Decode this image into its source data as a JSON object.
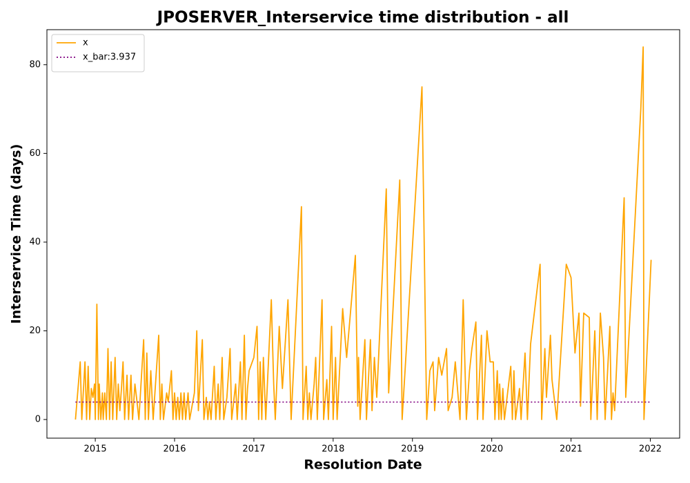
{
  "chart_data": {
    "type": "line",
    "title": "JPOSERVER_Interservice time distribution - all",
    "xlabel": "Resolution Date",
    "ylabel": "Interservice Time (days)",
    "xlim": [
      2014.39,
      2022.37
    ],
    "ylim": [
      -4.2,
      87.9
    ],
    "xticks": [
      2015,
      2016,
      2017,
      2018,
      2019,
      2020,
      2021,
      2022
    ],
    "yticks": [
      0,
      20,
      40,
      60,
      80
    ],
    "legend": "upper left",
    "series": [
      {
        "name": "x",
        "color": "orange",
        "linestyle": "solid",
        "x": [
          2014.75,
          2014.81,
          2014.83,
          2014.87,
          2014.89,
          2014.91,
          2014.93,
          2014.95,
          2014.97,
          2014.99,
          2015.0,
          2015.02,
          2015.04,
          2015.05,
          2015.07,
          2015.09,
          2015.1,
          2015.12,
          2015.14,
          2015.16,
          2015.18,
          2015.2,
          2015.22,
          2015.25,
          2015.27,
          2015.29,
          2015.31,
          2015.33,
          2015.35,
          2015.37,
          2015.4,
          2015.42,
          2015.45,
          2015.47,
          2015.5,
          2015.52,
          2015.55,
          2015.61,
          2015.63,
          2015.65,
          2015.67,
          2015.7,
          2015.73,
          2015.8,
          2015.82,
          2015.84,
          2015.86,
          2015.9,
          2015.92,
          2015.96,
          2015.98,
          2016.0,
          2016.02,
          2016.04,
          2016.06,
          2016.08,
          2016.1,
          2016.12,
          2016.14,
          2016.17,
          2016.19,
          2016.25,
          2016.28,
          2016.3,
          2016.35,
          2016.37,
          2016.4,
          2016.42,
          2016.44,
          2016.46,
          2016.5,
          2016.52,
          2016.55,
          2016.57,
          2016.6,
          2016.62,
          2016.66,
          2016.7,
          2016.72,
          2016.77,
          2016.79,
          2016.83,
          2016.85,
          2016.88,
          2016.9,
          2016.92,
          2016.94,
          2017.0,
          2017.04,
          2017.06,
          2017.08,
          2017.1,
          2017.12,
          2017.15,
          2017.22,
          2017.25,
          2017.27,
          2017.32,
          2017.36,
          2017.43,
          2017.47,
          2017.6,
          2017.62,
          2017.66,
          2017.68,
          2017.7,
          2017.72,
          2017.76,
          2017.78,
          2017.8,
          2017.86,
          2017.88,
          2017.92,
          2017.94,
          2017.98,
          2018.0,
          2018.03,
          2018.05,
          2018.12,
          2018.17,
          2018.28,
          2018.31,
          2018.32,
          2018.34,
          2018.4,
          2018.42,
          2018.47,
          2018.49,
          2018.52,
          2018.55,
          2018.67,
          2018.7,
          2018.84,
          2018.87,
          2019.12,
          2019.18,
          2019.22,
          2019.26,
          2019.28,
          2019.33,
          2019.37,
          2019.43,
          2019.45,
          2019.5,
          2019.54,
          2019.6,
          2019.64,
          2019.68,
          2019.72,
          2019.75,
          2019.8,
          2019.82,
          2019.87,
          2019.89,
          2019.94,
          2019.98,
          2020.02,
          2020.04,
          2020.07,
          2020.09,
          2020.1,
          2020.12,
          2020.14,
          2020.16,
          2020.2,
          2020.24,
          2020.26,
          2020.28,
          2020.3,
          2020.35,
          2020.37,
          2020.42,
          2020.45,
          2020.49,
          2020.61,
          2020.63,
          2020.67,
          2020.69,
          2020.74,
          2020.76,
          2020.82,
          2020.94,
          2021.0,
          2021.05,
          2021.1,
          2021.12,
          2021.16,
          2021.23,
          2021.25,
          2021.3,
          2021.33,
          2021.37,
          2021.41,
          2021.43,
          2021.49,
          2021.51,
          2021.53,
          2021.55,
          2021.67,
          2021.69,
          2021.88,
          2021.91,
          2021.92,
          2022.01
        ],
        "values": [
          0,
          13,
          0,
          13,
          0,
          12,
          0,
          7,
          5,
          8,
          0,
          26,
          0,
          8,
          0,
          6,
          0,
          6,
          0,
          16,
          0,
          13,
          0,
          14,
          0,
          8,
          2,
          7,
          13,
          0,
          10,
          0,
          10,
          0,
          8,
          5,
          0,
          18,
          0,
          15,
          0,
          11,
          0,
          19,
          0,
          8,
          0,
          6,
          4,
          11,
          0,
          6,
          0,
          5,
          0,
          6,
          0,
          6,
          0,
          6,
          0,
          6,
          20,
          2,
          18,
          0,
          5,
          0,
          4,
          0,
          12,
          0,
          8,
          0,
          14,
          0,
          5,
          16,
          0,
          8,
          0,
          13,
          0,
          19,
          0,
          7,
          11,
          14,
          21,
          0,
          13,
          0,
          14,
          0,
          27,
          8,
          0,
          21,
          7,
          27,
          0,
          48,
          0,
          12,
          0,
          6,
          0,
          8,
          14,
          0,
          27,
          0,
          9,
          0,
          21,
          0,
          14,
          0,
          25,
          14,
          37,
          3,
          14,
          0,
          18,
          0,
          18,
          2,
          14,
          5,
          52,
          6,
          54,
          0,
          75,
          0,
          11,
          13,
          2,
          14,
          10,
          16,
          2,
          5,
          13,
          0,
          27,
          0,
          11,
          16,
          22,
          0,
          19,
          0,
          20,
          13,
          13,
          0,
          11,
          0,
          8,
          0,
          7,
          0,
          6,
          12,
          0,
          11,
          0,
          7,
          0,
          15,
          0,
          17,
          35,
          0,
          16,
          5,
          19,
          9,
          0,
          35,
          32,
          15,
          24,
          3,
          24,
          23,
          0,
          20,
          0,
          24,
          14,
          0,
          21,
          0,
          6,
          2,
          50,
          5,
          70,
          84,
          0,
          36
        ]
      },
      {
        "name": "x_bar:3.937",
        "color": "purple",
        "linestyle": "dotted",
        "x": [
          2014.75,
          2022.01
        ],
        "values": [
          3.937,
          3.937
        ]
      }
    ]
  }
}
